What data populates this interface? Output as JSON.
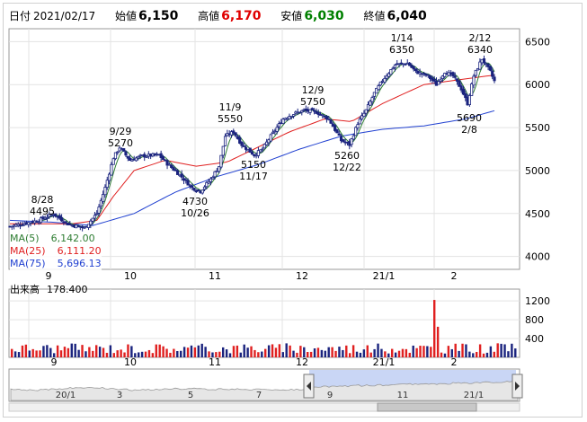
{
  "header": {
    "date_label": "日付",
    "date": "2021/02/17",
    "open_label": "始値",
    "open": "6,150",
    "high_label": "高値",
    "high": "6,170",
    "low_label": "安値",
    "low": "6,030",
    "close_label": "終値",
    "close": "6,040",
    "high_color": "#e00000",
    "low_color": "#008000"
  },
  "legend": {
    "ma5_label": "MA(5)",
    "ma5_value": "6,142.00",
    "ma5_color": "#2e7d32",
    "ma25_label": "MA(25)",
    "ma25_value": "6,111.20",
    "ma25_color": "#e02020",
    "ma75_label": "MA(75)",
    "ma75_value": "5,696.13",
    "ma75_color": "#2040d0"
  },
  "volume": {
    "label": "出来高",
    "value": "178.400"
  },
  "chart_data": [
    {
      "type": "candlestick",
      "ylim": [
        3850,
        6650
      ],
      "yticks": [
        "6500",
        "6000",
        "5500",
        "5000",
        "4500",
        "4000"
      ],
      "x_labels": [
        "9",
        "10",
        "11",
        "12",
        "21/1",
        "2"
      ],
      "annotations": [
        {
          "date": "8/28",
          "value": "4495"
        },
        {
          "date": "9/29",
          "value": "5270"
        },
        {
          "date": "10/26",
          "value": "4730"
        },
        {
          "date": "11/9",
          "value": "5550"
        },
        {
          "date": "11/17",
          "value": "5150"
        },
        {
          "date": "12/9",
          "value": "5750"
        },
        {
          "date": "12/22",
          "value": "5260"
        },
        {
          "date": "1/14",
          "value": "6350"
        },
        {
          "date": "2/12",
          "value": "6340"
        },
        {
          "date": "2/8",
          "value": "5690"
        }
      ],
      "series": [
        {
          "name": "MA(5)",
          "color": "#2e7d32"
        },
        {
          "name": "MA(25)",
          "color": "#e02020"
        },
        {
          "name": "MA(75)",
          "color": "#2040d0"
        }
      ],
      "key_points": [
        {
          "t": 0,
          "v": 4350
        },
        {
          "t": 14,
          "v": 4420
        },
        {
          "t": 21,
          "v": 4495
        },
        {
          "t": 28,
          "v": 4380
        },
        {
          "t": 36,
          "v": 4330
        },
        {
          "t": 42,
          "v": 4500
        },
        {
          "t": 46,
          "v": 4800
        },
        {
          "t": 50,
          "v": 5150
        },
        {
          "t": 53,
          "v": 5270
        },
        {
          "t": 58,
          "v": 5120
        },
        {
          "t": 64,
          "v": 5170
        },
        {
          "t": 72,
          "v": 5180
        },
        {
          "t": 76,
          "v": 5080
        },
        {
          "t": 82,
          "v": 4950
        },
        {
          "t": 88,
          "v": 4800
        },
        {
          "t": 92,
          "v": 4760
        },
        {
          "t": 97,
          "v": 4900
        },
        {
          "t": 101,
          "v": 5050
        },
        {
          "t": 104,
          "v": 5400
        },
        {
          "t": 108,
          "v": 5450
        },
        {
          "t": 112,
          "v": 5300
        },
        {
          "t": 118,
          "v": 5180
        },
        {
          "t": 122,
          "v": 5250
        },
        {
          "t": 126,
          "v": 5400
        },
        {
          "t": 132,
          "v": 5600
        },
        {
          "t": 136,
          "v": 5650
        },
        {
          "t": 142,
          "v": 5700
        },
        {
          "t": 148,
          "v": 5680
        },
        {
          "t": 154,
          "v": 5600
        },
        {
          "t": 160,
          "v": 5350
        },
        {
          "t": 164,
          "v": 5300
        },
        {
          "t": 168,
          "v": 5550
        },
        {
          "t": 172,
          "v": 5700
        },
        {
          "t": 176,
          "v": 5900
        },
        {
          "t": 180,
          "v": 6050
        },
        {
          "t": 186,
          "v": 6230
        },
        {
          "t": 192,
          "v": 6250
        },
        {
          "t": 196,
          "v": 6150
        },
        {
          "t": 202,
          "v": 6100
        },
        {
          "t": 206,
          "v": 6000
        },
        {
          "t": 210,
          "v": 6150
        },
        {
          "t": 214,
          "v": 6100
        },
        {
          "t": 218,
          "v": 5950
        },
        {
          "t": 221,
          "v": 5780
        },
        {
          "t": 224,
          "v": 6100
        },
        {
          "t": 228,
          "v": 6300
        },
        {
          "t": 232,
          "v": 6150
        },
        {
          "t": 234,
          "v": 6040
        }
      ],
      "ma25_points": [
        {
          "t": 0,
          "v": 4380
        },
        {
          "t": 30,
          "v": 4380
        },
        {
          "t": 42,
          "v": 4420
        },
        {
          "t": 50,
          "v": 4700
        },
        {
          "t": 60,
          "v": 5000
        },
        {
          "t": 75,
          "v": 5120
        },
        {
          "t": 90,
          "v": 5050
        },
        {
          "t": 105,
          "v": 5100
        },
        {
          "t": 118,
          "v": 5250
        },
        {
          "t": 135,
          "v": 5450
        },
        {
          "t": 152,
          "v": 5600
        },
        {
          "t": 165,
          "v": 5570
        },
        {
          "t": 180,
          "v": 5780
        },
        {
          "t": 200,
          "v": 6000
        },
        {
          "t": 215,
          "v": 6050
        },
        {
          "t": 234,
          "v": 6111
        }
      ],
      "ma75_points": [
        {
          "t": 0,
          "v": 4420
        },
        {
          "t": 20,
          "v": 4400
        },
        {
          "t": 40,
          "v": 4360
        },
        {
          "t": 60,
          "v": 4500
        },
        {
          "t": 80,
          "v": 4750
        },
        {
          "t": 100,
          "v": 4930
        },
        {
          "t": 120,
          "v": 5070
        },
        {
          "t": 140,
          "v": 5250
        },
        {
          "t": 160,
          "v": 5400
        },
        {
          "t": 180,
          "v": 5480
        },
        {
          "t": 200,
          "v": 5520
        },
        {
          "t": 220,
          "v": 5600
        },
        {
          "t": 234,
          "v": 5696
        }
      ]
    },
    {
      "type": "bar",
      "title": "出来高",
      "ylim": [
        0,
        1450
      ],
      "yticks": [
        "1200",
        "800",
        "400"
      ],
      "x_labels": [
        "9",
        "10",
        "11",
        "12",
        "21/1",
        "2"
      ],
      "bar_count": 144,
      "spikes": [
        {
          "t": 120,
          "v": 1220
        },
        {
          "t": 121,
          "v": 650
        }
      ]
    },
    {
      "type": "area",
      "x_labels": [
        "20/1",
        "3",
        "5",
        "7",
        "9",
        "11",
        "21/1"
      ],
      "selection_color": "#b8c8f0"
    }
  ]
}
